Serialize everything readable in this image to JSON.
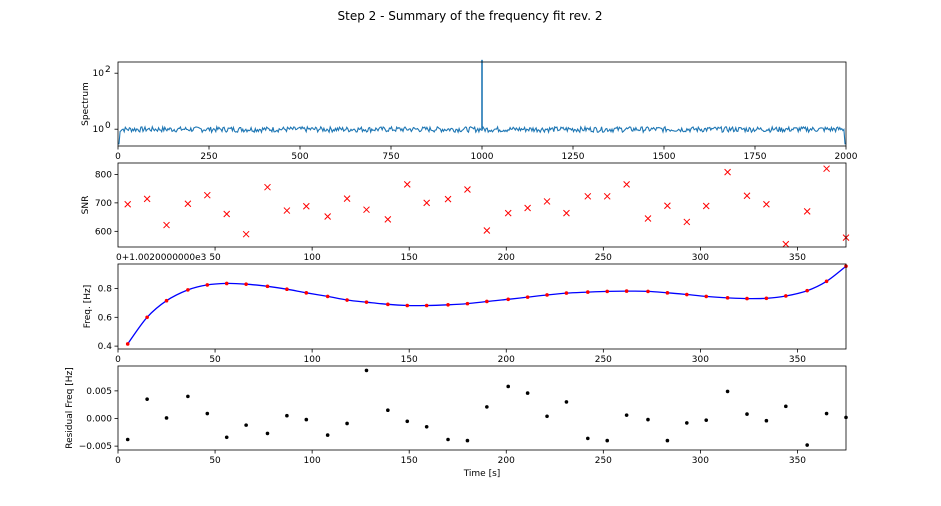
{
  "figure": {
    "title": "Step 2 - Summary of the frequency fit rev. 2"
  },
  "chart_data": [
    {
      "type": "line",
      "ylabel": "Spectrum",
      "xlim": [
        0,
        2000
      ],
      "ylog": true,
      "ylim_log10": [
        -0.6,
        2.4
      ],
      "x_ticks": [
        0,
        250,
        500,
        750,
        1000,
        1250,
        1500,
        1750,
        2000
      ],
      "x_tick_labels": [
        "0",
        "250",
        "500",
        "750",
        "1000",
        "1250",
        "1500",
        "1750",
        "2000"
      ],
      "y_ticks_log10": [
        0,
        2
      ],
      "y_tick_labels": [
        "10",
        "10"
      ],
      "y_tick_exponents": [
        "0",
        "2"
      ],
      "series": [
        {
          "baseline": 1.0,
          "peak_x": 1000,
          "peak_y": 300,
          "edge_drop_x": [
            0,
            2000
          ],
          "color": "#1f77b4"
        }
      ]
    },
    {
      "type": "scatter",
      "ylabel": "SNR",
      "xlim": [
        0,
        375
      ],
      "ylim": [
        545,
        840
      ],
      "x_offset_label": "0+1.0020000000e3",
      "x_ticks": [
        50,
        100,
        150,
        200,
        250,
        300,
        350
      ],
      "x_tick_labels": [
        "50",
        "100",
        "150",
        "200",
        "250",
        "300",
        "350"
      ],
      "y_ticks": [
        600,
        700,
        800
      ],
      "y_tick_labels": [
        "600",
        "700",
        "800"
      ],
      "marker": "x",
      "color": "#ff0000",
      "x": [
        5,
        15,
        25,
        36,
        46,
        56,
        66,
        77,
        87,
        97,
        108,
        118,
        128,
        139,
        149,
        159,
        170,
        180,
        190,
        201,
        211,
        221,
        231,
        242,
        252,
        262,
        273,
        283,
        293,
        303,
        314,
        324,
        334,
        344,
        355,
        365,
        375
      ],
      "y": [
        695,
        714,
        622,
        697,
        727,
        661,
        590,
        755,
        673,
        688,
        652,
        715,
        676,
        642,
        765,
        700,
        713,
        747,
        603,
        664,
        682,
        705,
        664,
        723,
        723,
        765,
        645,
        690,
        633,
        689,
        808,
        725,
        695,
        555,
        670,
        820,
        578
      ]
    },
    {
      "type": "line",
      "ylabel": "Freq. [Hz]",
      "xlim": [
        0,
        375
      ],
      "ylim": [
        0.38,
        0.97
      ],
      "x_ticks": [
        0,
        50,
        100,
        150,
        200,
        250,
        300,
        350
      ],
      "x_tick_labels": [
        "0",
        "50",
        "100",
        "150",
        "200",
        "250",
        "300",
        "350"
      ],
      "y_ticks": [
        0.4,
        0.6,
        0.8
      ],
      "y_tick_labels": [
        "0.4",
        "0.6",
        "0.8"
      ],
      "fit_color": "#0000ff",
      "point_color": "#ff0000",
      "x": [
        5,
        15,
        25,
        36,
        46,
        56,
        66,
        77,
        87,
        97,
        108,
        118,
        128,
        139,
        149,
        159,
        170,
        180,
        190,
        201,
        211,
        221,
        231,
        242,
        252,
        262,
        273,
        283,
        293,
        303,
        314,
        324,
        334,
        344,
        355,
        365,
        375
      ],
      "y": [
        0.415,
        0.6,
        0.715,
        0.79,
        0.825,
        0.835,
        0.83,
        0.815,
        0.795,
        0.77,
        0.745,
        0.72,
        0.705,
        0.69,
        0.682,
        0.682,
        0.687,
        0.695,
        0.71,
        0.725,
        0.74,
        0.755,
        0.768,
        0.775,
        0.78,
        0.782,
        0.78,
        0.77,
        0.758,
        0.745,
        0.735,
        0.73,
        0.732,
        0.748,
        0.785,
        0.85,
        0.955
      ]
    },
    {
      "type": "scatter",
      "ylabel": "Residual Freq [Hz]",
      "xlabel": "Time [s]",
      "xlim": [
        0,
        375
      ],
      "ylim": [
        -0.0057,
        0.0095
      ],
      "x_ticks": [
        0,
        50,
        100,
        150,
        200,
        250,
        300,
        350
      ],
      "x_tick_labels": [
        "0",
        "50",
        "100",
        "150",
        "200",
        "250",
        "300",
        "350"
      ],
      "y_ticks": [
        -0.005,
        0.0,
        0.005
      ],
      "y_tick_labels": [
        "−0.005",
        "0.000",
        "0.005"
      ],
      "color": "#000000",
      "x": [
        5,
        15,
        25,
        36,
        46,
        56,
        66,
        77,
        87,
        97,
        108,
        118,
        128,
        139,
        149,
        159,
        170,
        180,
        190,
        201,
        211,
        221,
        231,
        242,
        252,
        262,
        273,
        283,
        293,
        303,
        314,
        324,
        334,
        344,
        355,
        365,
        375
      ],
      "y": [
        -0.0038,
        0.0035,
        0.0001,
        0.004,
        0.0009,
        -0.0034,
        -0.0012,
        -0.0027,
        0.0005,
        -0.0002,
        -0.003,
        -0.0009,
        0.0087,
        0.0015,
        -0.0005,
        -0.0015,
        -0.0038,
        -0.004,
        0.0021,
        0.0058,
        0.0046,
        0.0004,
        0.003,
        -0.0036,
        -0.004,
        0.0006,
        -0.0002,
        -0.004,
        -0.0008,
        -0.0003,
        0.0049,
        0.0008,
        -0.0004,
        0.0022,
        -0.0048,
        0.0009,
        0.0002
      ]
    }
  ]
}
